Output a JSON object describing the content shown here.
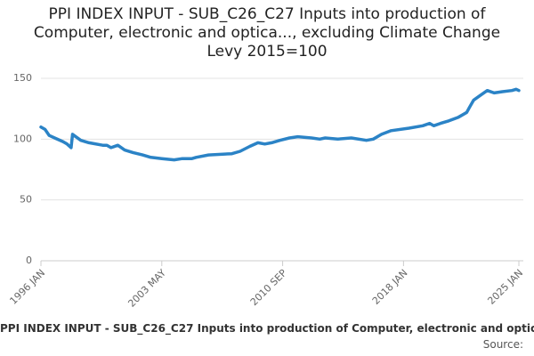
{
  "chart_data": {
    "type": "line",
    "title": "PPI INDEX INPUT - SUB_C26_C27 Inputs into production of Computer, electronic and optica..., excluding Climate Change Levy 2015=100",
    "x": [
      "1996-01",
      "1996-04",
      "1996-07",
      "1996-11",
      "1997-05",
      "1997-08",
      "1997-11",
      "1997-12",
      "1998-06",
      "1998-12",
      "1999-10",
      "2000-01",
      "2000-04",
      "2000-09",
      "2001-02",
      "2001-08",
      "2002-03",
      "2002-09",
      "2003-05",
      "2004-02",
      "2004-08",
      "2005-03",
      "2005-06",
      "2006-03",
      "2007-08",
      "2008-02",
      "2008-09",
      "2009-03",
      "2009-08",
      "2010-01",
      "2010-07",
      "2011-02",
      "2011-08",
      "2012-06",
      "2012-12",
      "2013-04",
      "2014-01",
      "2014-11",
      "2015-10",
      "2016-03",
      "2016-09",
      "2017-04",
      "2018-05",
      "2019-03",
      "2019-08",
      "2019-11",
      "2020-04",
      "2020-10",
      "2021-05",
      "2021-11",
      "2022-01",
      "2022-04",
      "2022-09",
      "2023-02",
      "2023-07",
      "2024-01",
      "2024-08",
      "2024-11",
      "2025-01"
    ],
    "series": [
      {
        "name": "PPI INDEX INPUT - SUB_C26_C27 Inputs into production of Computer, electronic and optica..., excluding Climate Change Levy 2015=100",
        "color": "#2b83c6",
        "values": [
          110,
          108,
          103,
          101,
          98,
          96,
          93,
          104,
          99,
          97,
          95,
          95,
          93,
          95,
          91,
          89,
          87,
          85,
          84,
          83,
          84,
          84,
          85,
          87,
          88,
          90,
          94,
          97,
          96,
          97,
          99,
          101,
          102,
          101,
          100,
          101,
          100,
          101,
          99,
          100,
          104,
          107,
          109,
          111,
          113,
          111,
          113,
          115,
          118,
          122,
          126,
          132,
          136,
          140,
          138,
          139,
          140,
          141,
          140
        ]
      }
    ],
    "xlim": [
      "1996-01",
      "2025-01"
    ],
    "xticks": [
      {
        "value": "1996-01",
        "label": "1996 JAN"
      },
      {
        "value": "2003-05",
        "label": "2003 MAY"
      },
      {
        "value": "2010-09",
        "label": "2010 SEP"
      },
      {
        "value": "2018-01",
        "label": "2018 JAN"
      },
      {
        "value": "2025-01",
        "label": "2025 JAN"
      }
    ],
    "ylim": [
      0,
      150
    ],
    "yticks": [
      0,
      50,
      100,
      150
    ],
    "grid": true,
    "source": "Source:"
  }
}
